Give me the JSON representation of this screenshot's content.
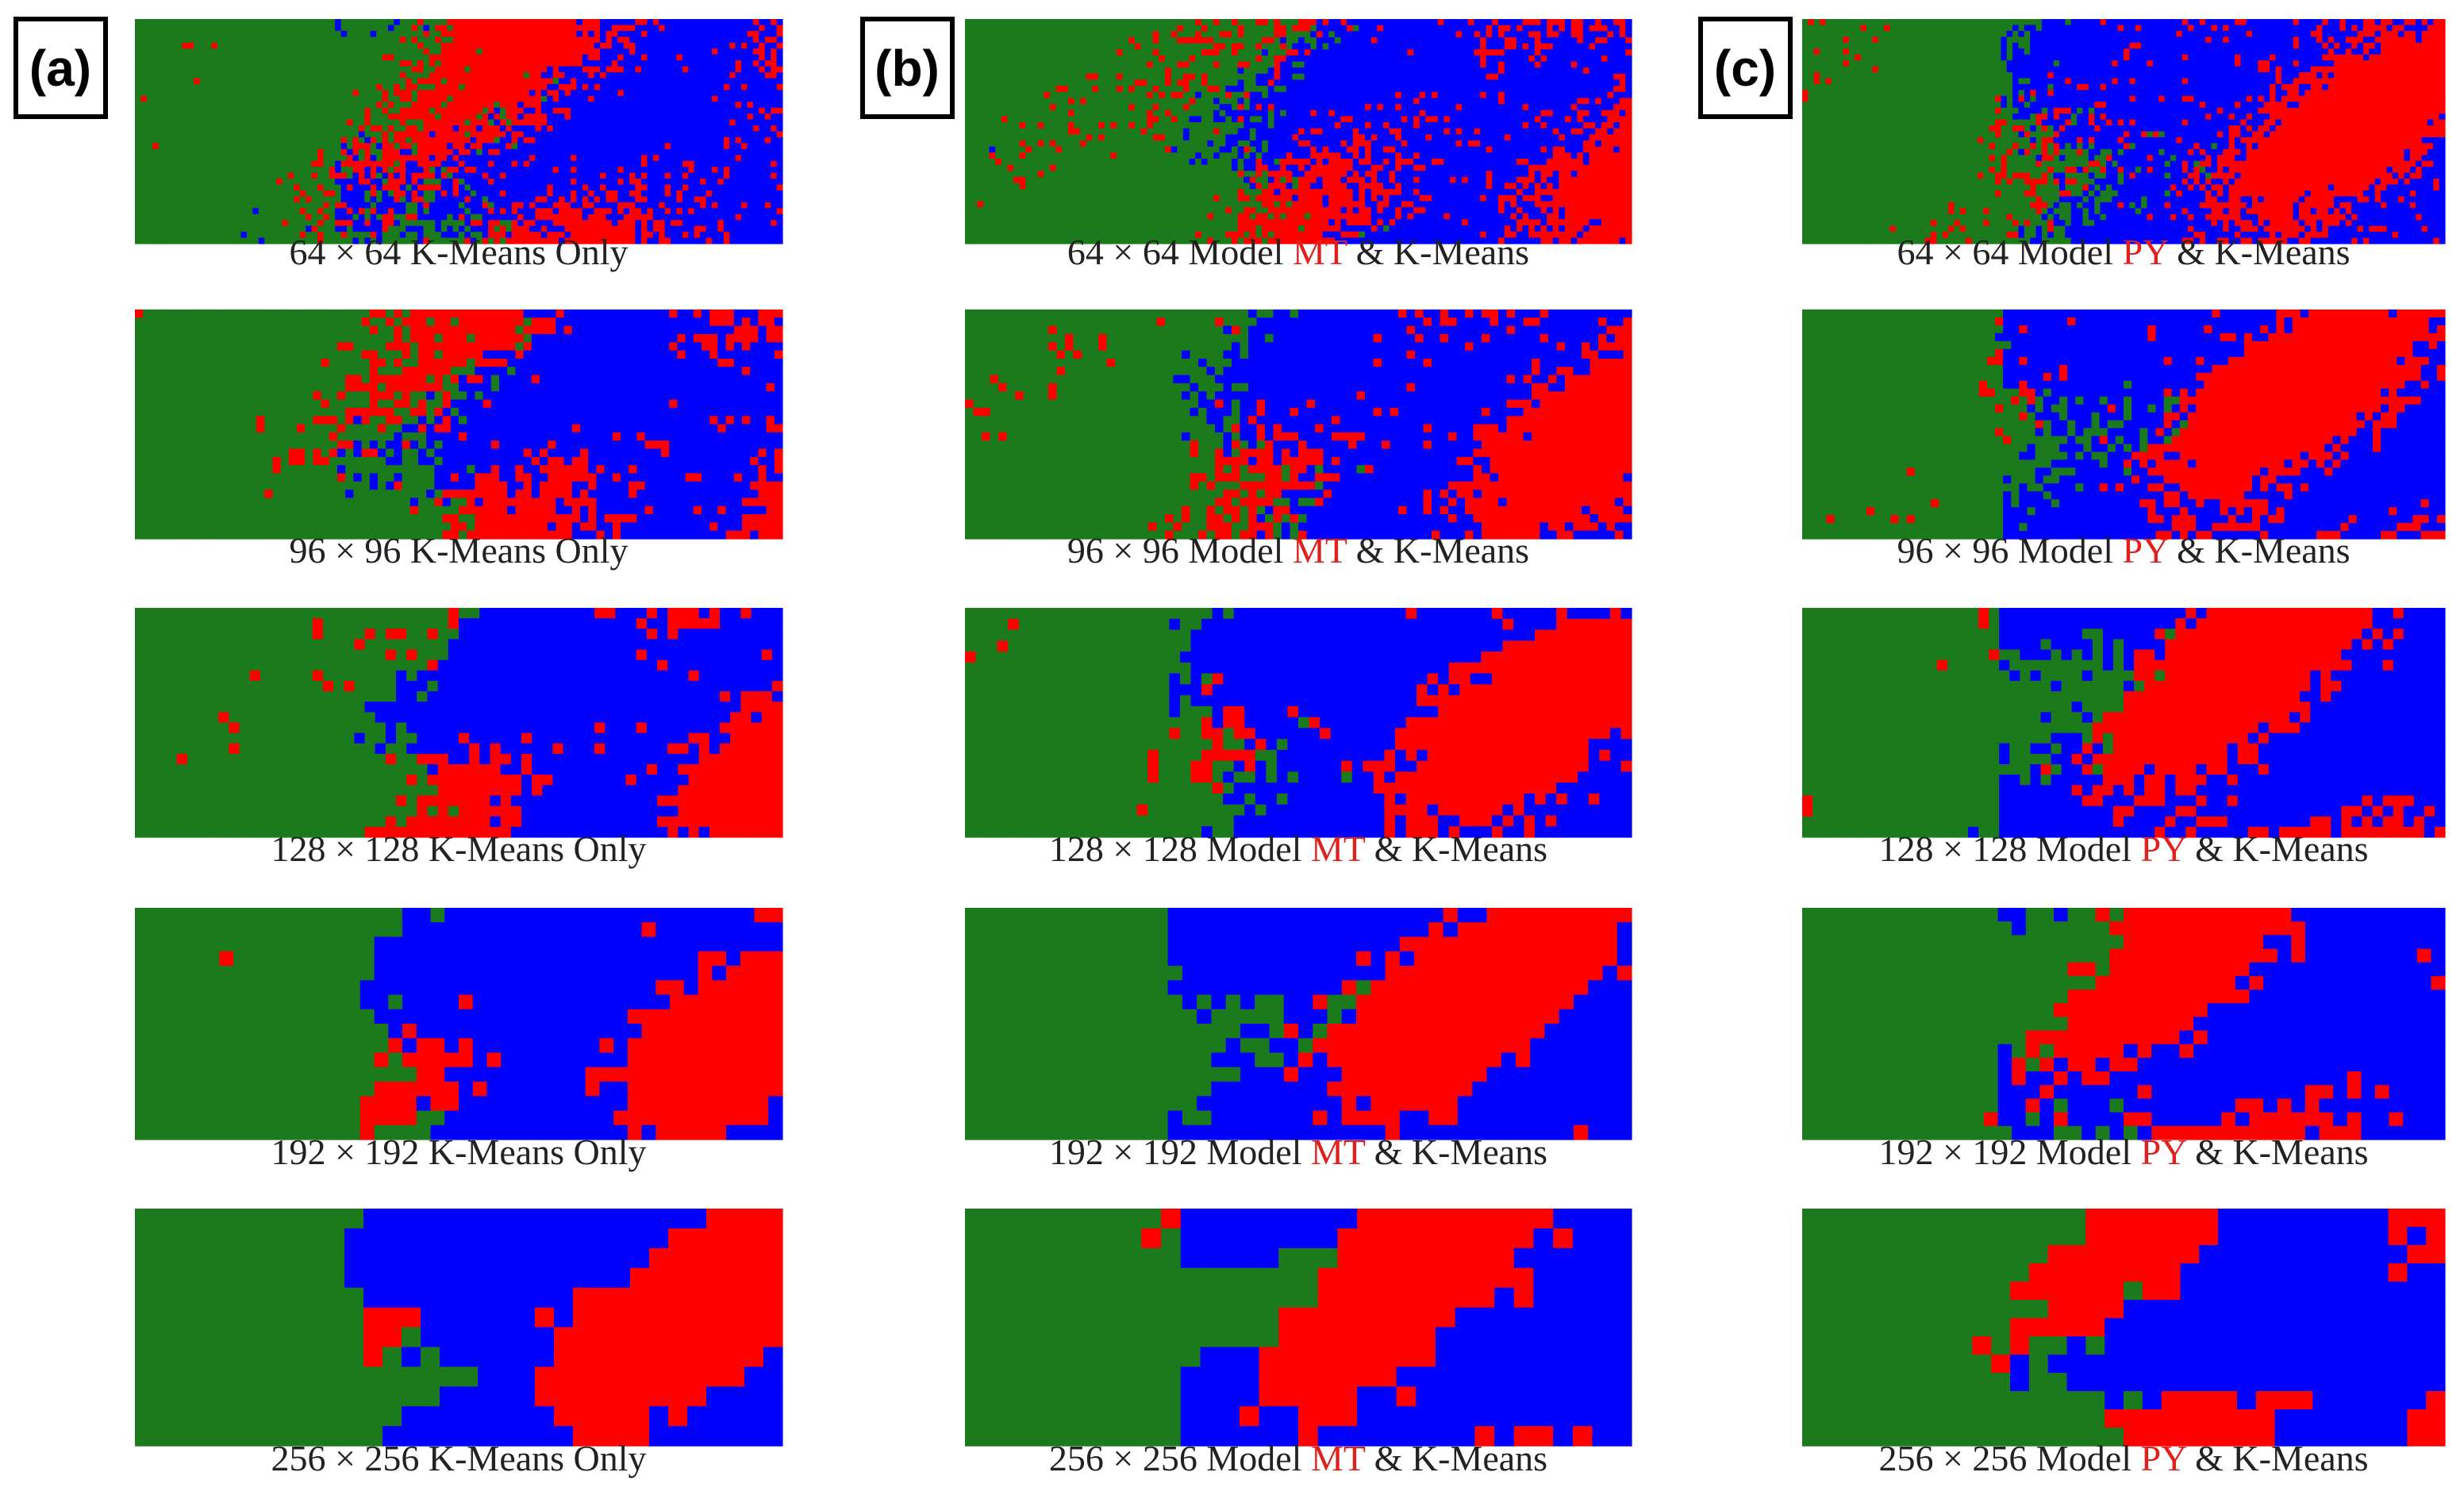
{
  "panels": [
    {
      "label": "(a)",
      "captions": [
        [
          "64 × 64 K-Means Only"
        ],
        [
          "96 × 96 K-Means Only"
        ],
        [
          "128 × 128 K-Means Only"
        ],
        [
          "192 × 192 K-Means Only"
        ],
        [
          "256 × 256 K-Means Only"
        ]
      ]
    },
    {
      "label": "(b)",
      "captions": [
        [
          "64 × 64 Model ",
          "MT",
          " & K-Means"
        ],
        [
          "96 × 96 Model ",
          "MT",
          " & K-Means"
        ],
        [
          "128 × 128 Model ",
          "MT",
          " & K-Means"
        ],
        [
          "192 × 192 Model ",
          "MT",
          " & K-Means"
        ],
        [
          "256 × 256 Model ",
          "MT",
          " & K-Means"
        ]
      ]
    },
    {
      "label": "(c)",
      "captions": [
        [
          "64 × 64 Model ",
          "PY",
          " & K-Means"
        ],
        [
          "96 × 96 Model ",
          "PY",
          " & K-Means"
        ],
        [
          "128 × 128 Model ",
          "PY",
          " & K-Means"
        ],
        [
          "192 × 192 Model ",
          "PY",
          " & K-Means"
        ],
        [
          "256 × 256 Model ",
          "PY",
          " & K-Means"
        ]
      ]
    }
  ]
}
